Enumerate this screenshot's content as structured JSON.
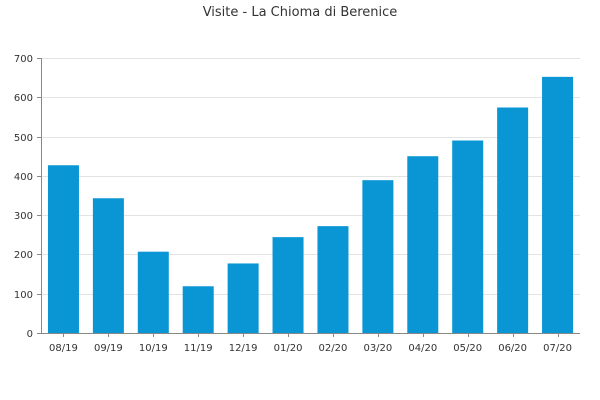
{
  "chart_data": {
    "type": "bar",
    "title": "Visite - La Chioma di Berenice",
    "xlabel": "",
    "ylabel": "",
    "categories": [
      "08/19",
      "09/19",
      "10/19",
      "11/19",
      "12/19",
      "01/20",
      "02/20",
      "03/20",
      "04/20",
      "05/20",
      "06/20",
      "07/20"
    ],
    "values": [
      427,
      343,
      207,
      119,
      177,
      244,
      272,
      389,
      450,
      490,
      574,
      652
    ],
    "ylim": [
      0,
      700
    ],
    "yticks": [
      "0",
      "100",
      "200",
      "300",
      "400",
      "500",
      "600",
      "700"
    ],
    "grid": true,
    "legend": "none",
    "bar_color": "#0a96d4",
    "grid_color": "#e3e3e3",
    "axis_color": "#888888"
  }
}
